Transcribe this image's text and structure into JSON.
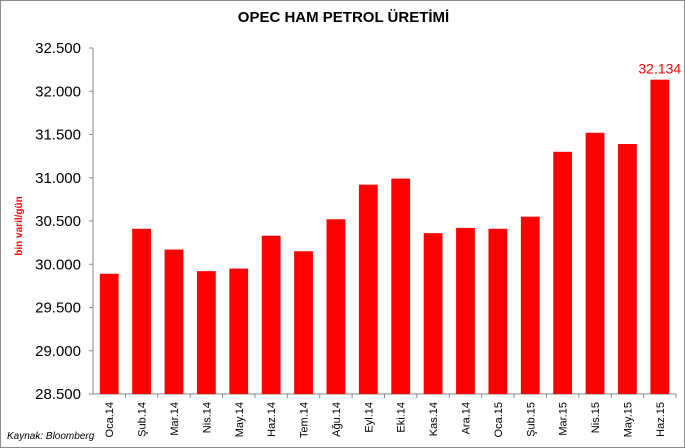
{
  "chart_data": {
    "type": "bar",
    "title": "OPEC HAM PETROL ÜRETİMİ",
    "ylabel": "bin varil/gün",
    "xlabel": "",
    "source": "Kaynak: Bloomberg",
    "categories": [
      "Oca.14",
      "Şub.14",
      "Mar.14",
      "Nis.14",
      "May.14",
      "Haz.14",
      "Tem.14",
      "Ağu.14",
      "Eyl.14",
      "Eki.14",
      "Kas.14",
      "Ara.14",
      "Oca.15",
      "Şub.15",
      "Mar.15",
      "Nis.15",
      "May.15",
      "Haz.15"
    ],
    "values": [
      29890,
      30410,
      30170,
      29920,
      29950,
      30330,
      30150,
      30520,
      30920,
      30990,
      30360,
      30420,
      30410,
      30550,
      31300,
      31520,
      31390,
      32134
    ],
    "ylim": [
      28500,
      32500
    ],
    "yticks": [
      28500,
      29000,
      29500,
      30000,
      30500,
      31000,
      31500,
      32000,
      32500
    ],
    "ytick_labels": [
      "28.500",
      "29.000",
      "29.500",
      "30.000",
      "30.500",
      "31.000",
      "31.500",
      "32.000",
      "32.500"
    ],
    "data_labels": [
      {
        "index": 17,
        "text": "32.134"
      }
    ],
    "grid": false,
    "bar_color": "#ff0000",
    "label_color": "#ff0000"
  }
}
